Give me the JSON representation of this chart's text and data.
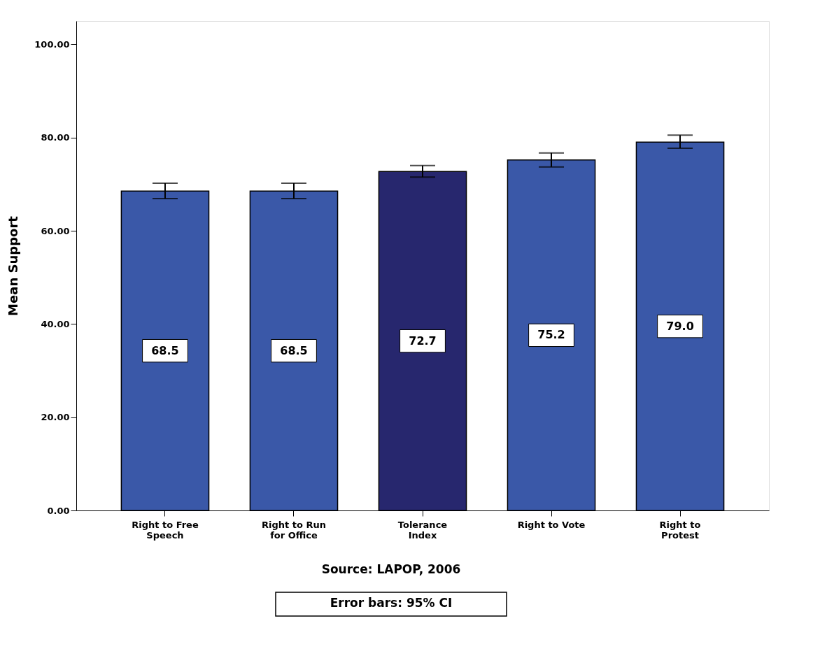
{
  "chart_data": {
    "type": "bar",
    "categories": [
      "Right to Free\nSpeech",
      "Right to Run\nfor Office",
      "Tolerance\nIndex",
      "Right to Vote",
      "Right to\nProtest"
    ],
    "values": [
      68.5,
      68.5,
      72.7,
      75.2,
      79.0
    ],
    "colors": [
      "#3a58a8",
      "#3a58a8",
      "#27276e",
      "#3a58a8",
      "#3a58a8"
    ],
    "errors": [
      [
        66.9,
        70.2
      ],
      [
        66.9,
        70.2
      ],
      [
        71.5,
        74.0
      ],
      [
        73.7,
        76.7
      ],
      [
        77.7,
        80.5
      ]
    ],
    "ylabel": "Mean Support",
    "ylim": [
      0,
      105
    ],
    "yticks": [
      {
        "value": 0,
        "label": "0.00"
      },
      {
        "value": 20,
        "label": "20.00"
      },
      {
        "value": 40,
        "label": "40.00"
      },
      {
        "value": 60,
        "label": "60.00"
      },
      {
        "value": 80,
        "label": "80.00"
      },
      {
        "value": 100,
        "label": "100.00"
      }
    ],
    "value_labels": [
      "68.5",
      "68.5",
      "72.7",
      "75.2",
      "79.0"
    ],
    "grid": false,
    "annotations": [
      "Source: LAPOP, 2006",
      "Error bars: 95% CI"
    ]
  }
}
